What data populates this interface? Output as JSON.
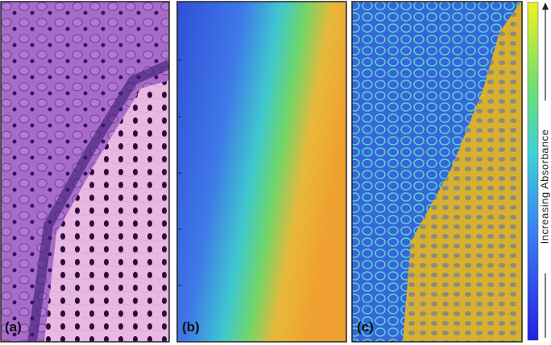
{
  "panels": [
    {
      "label": "(a)"
    },
    {
      "label": "(b)"
    },
    {
      "label": "(c)"
    }
  ],
  "colorbar": {
    "label": "Increasing Absorbance"
  }
}
